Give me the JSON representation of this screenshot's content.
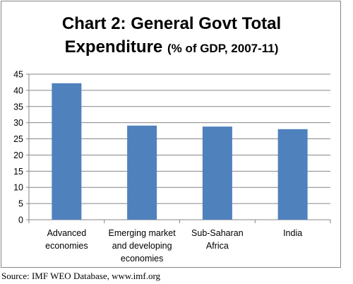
{
  "chart_data": {
    "type": "bar",
    "title_line1": "Chart 2: General Govt Total",
    "title_line2_main": "Expenditure",
    "title_line2_sub": "(% of GDP, 2007-11)",
    "categories": [
      [
        "Advanced",
        "economies"
      ],
      [
        "Emerging market",
        "and developing",
        "economies"
      ],
      [
        "Sub-Saharan",
        "Africa"
      ],
      [
        "India"
      ]
    ],
    "values": [
      42.2,
      29.1,
      28.8,
      28.0
    ],
    "ylim": [
      0,
      45
    ],
    "yticks": [
      "0",
      "5",
      "10",
      "15",
      "20",
      "25",
      "30",
      "35",
      "40",
      "45"
    ],
    "grid": true,
    "legend": "none",
    "bar_color": "#4F81BD"
  },
  "source": "Source: IMF WEO Database, www.imf.org"
}
